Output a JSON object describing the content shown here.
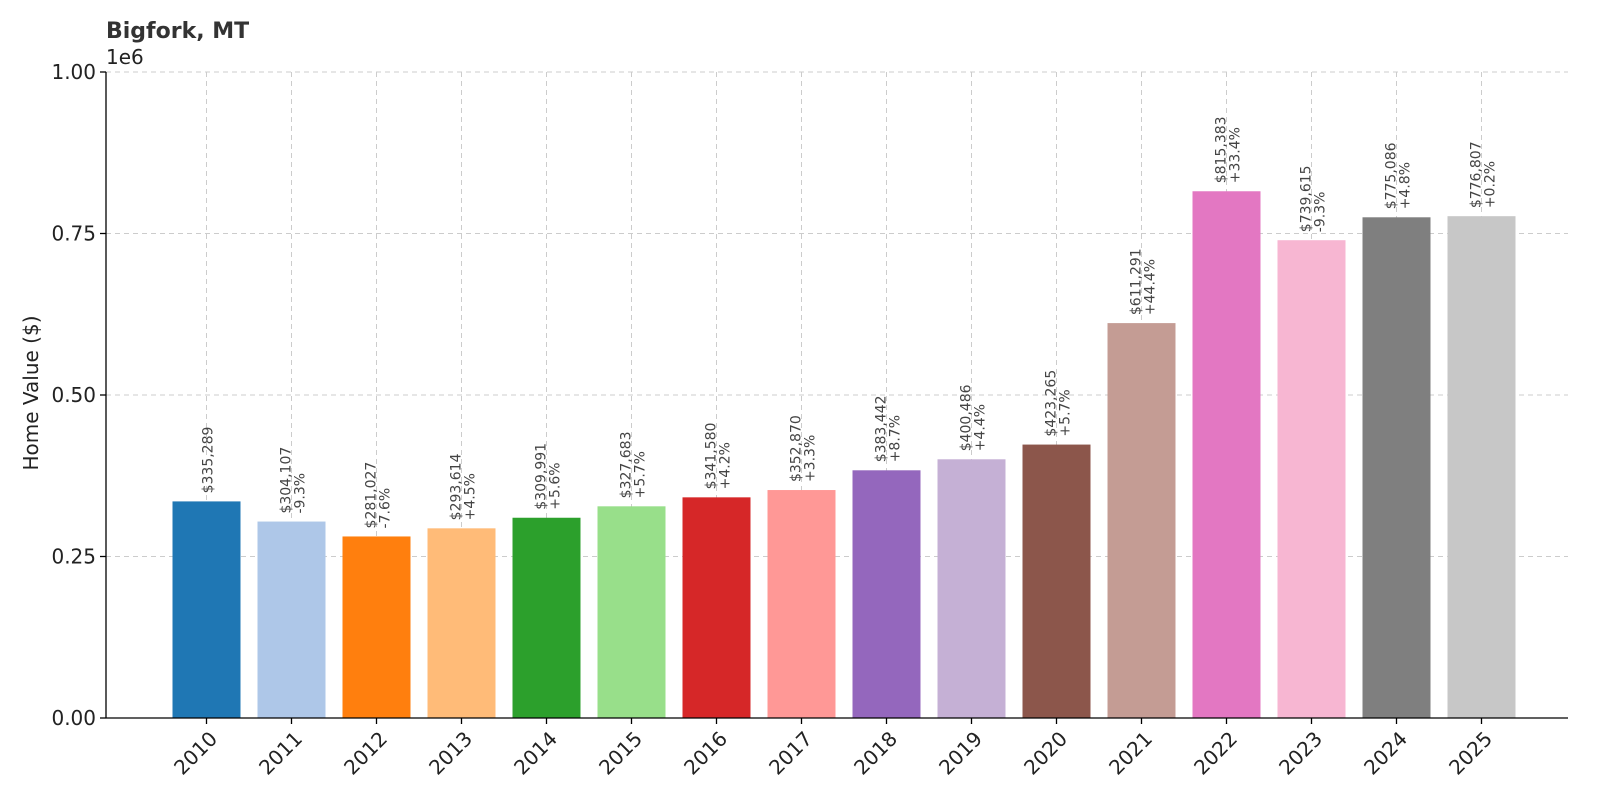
{
  "chart_data": {
    "type": "bar",
    "title": "Bigfork, MT",
    "xlabel": "",
    "ylabel": "Home Value ($)",
    "scale_note": "1e6",
    "ylim": [
      0,
      1000000
    ],
    "ytick_values": [
      0,
      250000,
      500000,
      750000,
      1000000
    ],
    "ytick_labels": [
      "0.00",
      "0.25",
      "0.50",
      "0.75",
      "1.00"
    ],
    "grid": true,
    "categories": [
      "2010",
      "2011",
      "2012",
      "2013",
      "2014",
      "2015",
      "2016",
      "2017",
      "2018",
      "2019",
      "2020",
      "2021",
      "2022",
      "2023",
      "2024",
      "2025"
    ],
    "values": [
      335289,
      304107,
      281027,
      293614,
      309991,
      327683,
      341580,
      352870,
      383442,
      400486,
      423265,
      611291,
      815383,
      739615,
      775086,
      776807
    ],
    "value_labels": [
      "$335,289",
      "$304,107",
      "$281,027",
      "$293,614",
      "$309,991",
      "$327,683",
      "$341,580",
      "$352,870",
      "$383,442",
      "$400,486",
      "$423,265",
      "$611,291",
      "$815,383",
      "$739,615",
      "$775,086",
      "$776,807"
    ],
    "change_labels": [
      "",
      "-9.3%",
      "-7.6%",
      "+4.5%",
      "+5.6%",
      "+5.7%",
      "+4.2%",
      "+3.3%",
      "+8.7%",
      "+4.4%",
      "+5.7%",
      "+44.4%",
      "+33.4%",
      "-9.3%",
      "+4.8%",
      "+0.2%"
    ],
    "colors": [
      "#1f77b4",
      "#aec7e8",
      "#ff7f0e",
      "#ffbb78",
      "#2ca02c",
      "#98df8a",
      "#d62728",
      "#ff9896",
      "#9467bd",
      "#c5b0d5",
      "#8c564b",
      "#c49c94",
      "#e377c2",
      "#f7b6d2",
      "#7f7f7f",
      "#c7c7c7"
    ]
  }
}
